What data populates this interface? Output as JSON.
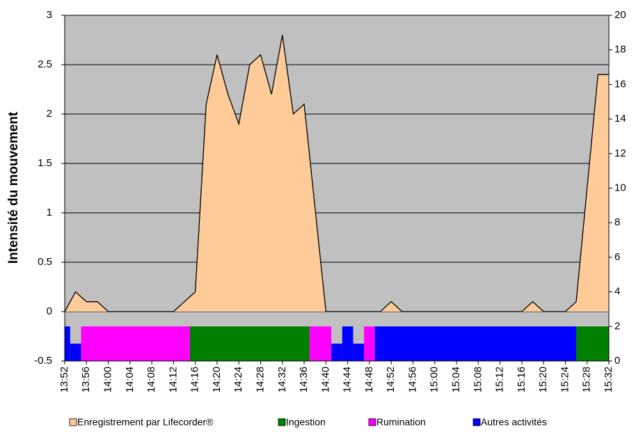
{
  "chart_data": {
    "type": "area",
    "ylabel": "Intensité du mouvement",
    "x": [
      "13:52",
      "13:54",
      "13:56",
      "13:58",
      "14:00",
      "14:12",
      "14:16",
      "14:18",
      "14:20",
      "14:22",
      "14:24",
      "14:26",
      "14:28",
      "14:30",
      "14:32",
      "14:34",
      "14:36",
      "14:40",
      "14:50",
      "14:52",
      "14:54",
      "15:16",
      "15:18",
      "15:20",
      "15:24",
      "15:26",
      "15:30",
      "15:32"
    ],
    "xlim": [
      "13:52",
      "15:32"
    ],
    "xticks": [
      "13:52",
      "13:56",
      "14:00",
      "14:04",
      "14:08",
      "14:12",
      "14:16",
      "14:20",
      "14:24",
      "14:28",
      "14:32",
      "14:36",
      "14:40",
      "14:44",
      "14:48",
      "14:52",
      "14:56",
      "15:00",
      "15:04",
      "15:08",
      "15:12",
      "15:16",
      "15:20",
      "15:24",
      "15:28",
      "15:32"
    ],
    "series": [
      {
        "name": "Enregistrement  par Lifecorder®",
        "color": "#ffcc99",
        "values": [
          0,
          0.2,
          0.1,
          0.1,
          0,
          0,
          0.2,
          2.1,
          2.6,
          2.2,
          1.9,
          2.5,
          2.6,
          2.2,
          2.8,
          2.0,
          2.1,
          0,
          0,
          0.1,
          0,
          0,
          0.1,
          0,
          0,
          0.1,
          2.4,
          2.4
        ]
      },
      {
        "name": "Ingestion",
        "color": "#008000",
        "axis": "y2",
        "segments": [
          {
            "start": "14:15",
            "end": "14:37",
            "value": 2
          },
          {
            "start": "15:26",
            "end": "15:32",
            "value": 2
          }
        ]
      },
      {
        "name": "Rumination",
        "color": "#ff00ff",
        "axis": "y2",
        "segments": [
          {
            "start": "13:55",
            "end": "14:15",
            "value": 2
          },
          {
            "start": "14:37",
            "end": "14:41",
            "value": 2
          },
          {
            "start": "14:47",
            "end": "14:49",
            "value": 2
          }
        ]
      },
      {
        "name": "Autres activités",
        "color": "#0000ff",
        "axis": "y2",
        "segments": [
          {
            "start": "13:52",
            "end": "13:53",
            "value": 2
          },
          {
            "start": "13:53",
            "end": "13:55",
            "value": 1
          },
          {
            "start": "14:41",
            "end": "14:43",
            "value": 1
          },
          {
            "start": "14:43",
            "end": "14:45",
            "value": 2
          },
          {
            "start": "14:45",
            "end": "14:47",
            "value": 1
          },
          {
            "start": "14:49",
            "end": "15:26",
            "value": 2
          }
        ]
      }
    ],
    "ylim": [
      -0.5,
      3
    ],
    "yticks": [
      -0.5,
      0,
      0.5,
      1,
      1.5,
      2,
      2.5,
      3
    ],
    "y2lim": [
      0,
      20
    ],
    "y2ticks": [
      0,
      2,
      4,
      6,
      8,
      10,
      12,
      14,
      16,
      18,
      20
    ],
    "grid": true,
    "legend": "bottom"
  }
}
